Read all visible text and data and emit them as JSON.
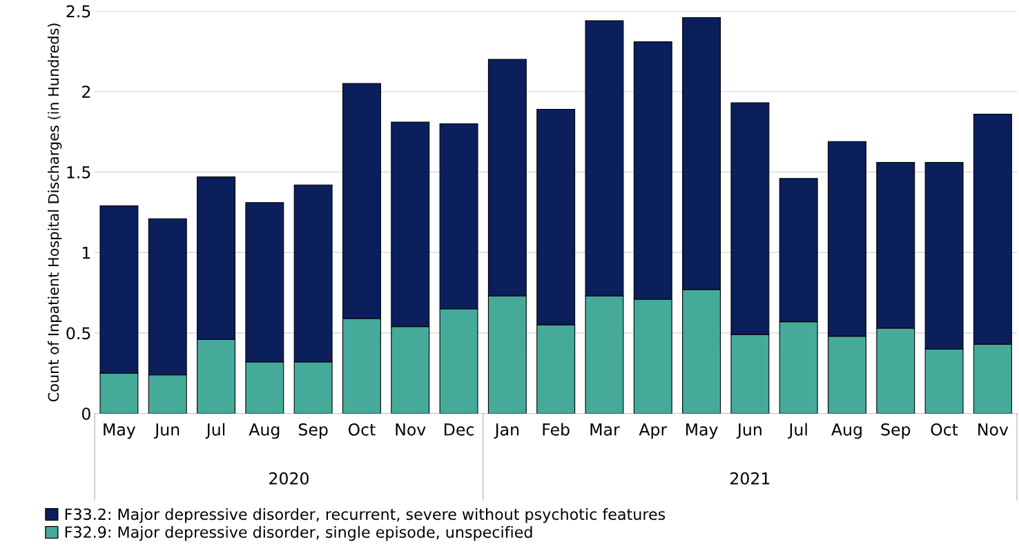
{
  "chart_data": {
    "type": "bar",
    "stacked": true,
    "ylabel": "Count of Inpatient Hospital Discharges (in Hundreds)",
    "categories": [
      "May",
      "Jun",
      "Jul",
      "Aug",
      "Sep",
      "Oct",
      "Nov",
      "Dec",
      "Jan",
      "Feb",
      "Mar",
      "Apr",
      "May",
      "Jun",
      "Jul",
      "Aug",
      "Sep",
      "Oct",
      "Nov"
    ],
    "series": [
      {
        "name": "F32.9: Major depressive disorder, single episode, unspecified",
        "color": "#46aa9b",
        "values": [
          0.25,
          0.24,
          0.46,
          0.32,
          0.32,
          0.59,
          0.54,
          0.65,
          0.73,
          0.55,
          0.73,
          0.71,
          0.77,
          0.49,
          0.57,
          0.48,
          0.53,
          0.4,
          0.43
        ]
      },
      {
        "name": "F33.2: Major depressive disorder, recurrent, severe without psychotic features",
        "color": "#0a1f5c",
        "values": [
          1.04,
          0.97,
          1.01,
          0.99,
          1.1,
          1.46,
          1.27,
          1.15,
          1.47,
          1.34,
          1.71,
          1.6,
          1.69,
          1.44,
          0.89,
          1.21,
          1.03,
          1.16,
          1.43
        ]
      }
    ],
    "annotations": [
      "2020",
      "2021"
    ],
    "ylim": [
      0,
      2.5
    ],
    "yticks": [
      0,
      {
        "value": 0.5,
        "label": "0.5"
      },
      1,
      {
        "value": 1.5,
        "label": "1.5"
      },
      2,
      {
        "value": 2.5,
        "label": "2.5"
      }
    ],
    "grid": "y",
    "legend": "bottom"
  }
}
